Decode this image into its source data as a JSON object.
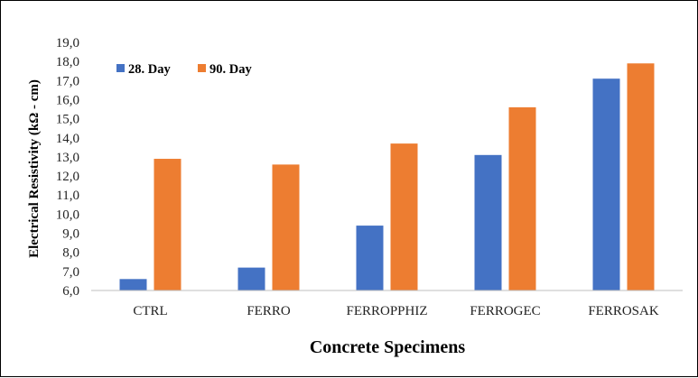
{
  "chart_data": {
    "type": "bar",
    "title": "",
    "xlabel": "Concrete Specimens",
    "ylabel": "Electrical Resistivity (kΩ - cm)",
    "categories": [
      "CTRL",
      "FERRO",
      "FERROPPHIZ",
      "FERROGEC",
      "FERROSAK"
    ],
    "series": [
      {
        "name": "28. Day",
        "color": "#4472C4",
        "values": [
          6.6,
          7.2,
          9.4,
          13.1,
          17.1
        ]
      },
      {
        "name": "90. Day",
        "color": "#ED7D31",
        "values": [
          12.9,
          12.6,
          13.7,
          15.6,
          17.9
        ]
      }
    ],
    "ylim": [
      6.0,
      19.0
    ],
    "yticks": [
      "6,0",
      "7,0",
      "8,0",
      "9,0",
      "10,0",
      "11,0",
      "12,0",
      "13,0",
      "14,0",
      "15,0",
      "16,0",
      "17,0",
      "18,0",
      "19,0"
    ],
    "ytick_step": 1.0,
    "grid": false,
    "legend_position": "top-left"
  }
}
